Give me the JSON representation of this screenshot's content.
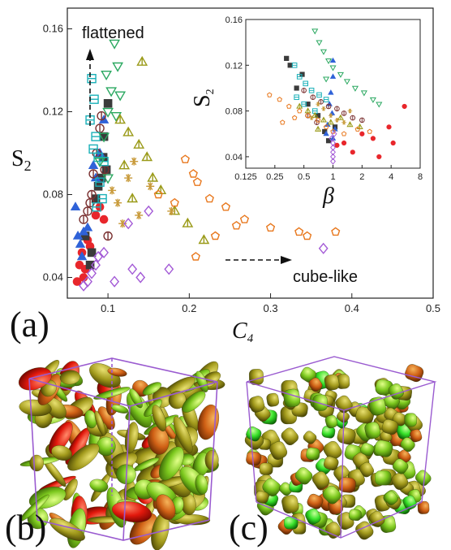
{
  "chart_data": [
    {
      "type": "scatter",
      "title": "",
      "xlabel": "C",
      "xlabel_sub": "4",
      "ylabel": "S",
      "ylabel_sub": "2",
      "xlim": [
        0.05,
        0.5
      ],
      "ylim": [
        0.03,
        0.17
      ],
      "xticks": [
        "0.1",
        "0.2",
        "0.3",
        "0.4",
        "0.5"
      ],
      "xtick_values": [
        0.1,
        0.2,
        0.3,
        0.4,
        0.5
      ],
      "yticks": [
        "0.04",
        "0.08",
        "0.12",
        "0.16"
      ],
      "ytick_values": [
        0.04,
        0.08,
        0.12,
        0.16
      ],
      "annotations": {
        "flattened": "flattened",
        "cube_like": "cube-like"
      },
      "series": [
        {
          "marker": "circle",
          "color": "#e8262b",
          "filled": true,
          "points": [
            [
              0.062,
              0.038
            ],
            [
              0.065,
              0.046
            ],
            [
              0.068,
              0.052
            ],
            [
              0.072,
              0.044
            ],
            [
              0.078,
              0.055
            ],
            [
              0.085,
              0.07
            ],
            [
              0.09,
              0.074
            ],
            [
              0.095,
              0.068
            ],
            [
              0.07,
              0.04
            ],
            [
              0.075,
              0.058
            ]
          ]
        },
        {
          "marker": "square",
          "color": "#3b3b3b",
          "filled": true,
          "points": [
            [
              0.072,
              0.06
            ],
            [
              0.078,
              0.046
            ],
            [
              0.085,
              0.078
            ],
            [
              0.092,
              0.088
            ],
            [
              0.1,
              0.124
            ],
            [
              0.095,
              0.108
            ],
            [
              0.098,
              0.092
            ],
            [
              0.088,
              0.084
            ],
            [
              0.08,
              0.052
            ],
            [
              0.094,
              0.098
            ]
          ]
        },
        {
          "marker": "triangle",
          "color": "#2f62d8",
          "filled": true,
          "points": [
            [
              0.06,
              0.074
            ],
            [
              0.063,
              0.06
            ],
            [
              0.066,
              0.056
            ],
            [
              0.07,
              0.062
            ],
            [
              0.075,
              0.064
            ],
            [
              0.082,
              0.094
            ],
            [
              0.09,
              0.1
            ],
            [
              0.095,
              0.116
            ],
            [
              0.085,
              0.088
            ],
            [
              0.068,
              0.05
            ]
          ]
        },
        {
          "marker": "circle-bar",
          "color": "#7a3030",
          "filled": false,
          "points": [
            [
              0.07,
              0.068
            ],
            [
              0.075,
              0.072
            ],
            [
              0.08,
              0.08
            ],
            [
              0.082,
              0.09
            ],
            [
              0.086,
              0.1
            ],
            [
              0.09,
              0.112
            ],
            [
              0.092,
              0.118
            ],
            [
              0.096,
              0.092
            ],
            [
              0.1,
              0.06
            ],
            [
              0.078,
              0.076
            ]
          ]
        },
        {
          "marker": "square-bar",
          "color": "#1ab0b8",
          "filled": false,
          "points": [
            [
              0.08,
              0.136
            ],
            [
              0.083,
              0.126
            ],
            [
              0.085,
              0.108
            ],
            [
              0.088,
              0.098
            ],
            [
              0.09,
              0.086
            ],
            [
              0.093,
              0.078
            ],
            [
              0.078,
              0.116
            ],
            [
              0.082,
              0.102
            ],
            [
              0.086,
              0.074
            ],
            [
              0.095,
              0.096
            ]
          ]
        },
        {
          "marker": "triangle-down",
          "color": "#2aa860",
          "filled": false,
          "points": [
            [
              0.108,
              0.153
            ],
            [
              0.112,
              0.142
            ],
            [
              0.104,
              0.13
            ],
            [
              0.1,
              0.12
            ],
            [
              0.095,
              0.108
            ],
            [
              0.09,
              0.096
            ],
            [
              0.1,
              0.088
            ],
            [
              0.11,
              0.118
            ],
            [
              0.098,
              0.138
            ],
            [
              0.115,
              0.128
            ]
          ]
        },
        {
          "marker": "triangle-bar",
          "color": "#9a9a18",
          "filled": false,
          "points": [
            [
              0.115,
              0.116
            ],
            [
              0.125,
              0.11
            ],
            [
              0.138,
              0.104
            ],
            [
              0.148,
              0.098
            ],
            [
              0.165,
              0.082
            ],
            [
              0.182,
              0.072
            ],
            [
              0.198,
              0.066
            ],
            [
              0.218,
              0.058
            ],
            [
              0.155,
              0.088
            ],
            [
              0.13,
              0.078
            ],
            [
              0.142,
              0.144
            ],
            [
              0.12,
              0.094
            ]
          ]
        },
        {
          "marker": "asterisk",
          "color": "#c89a3a",
          "filled": false,
          "points": [
            [
              0.105,
              0.082
            ],
            [
              0.112,
              0.076
            ],
            [
              0.125,
              0.088
            ],
            [
              0.138,
              0.07
            ],
            [
              0.152,
              0.084
            ],
            [
              0.178,
              0.072
            ],
            [
              0.118,
              0.066
            ],
            [
              0.132,
              0.096
            ]
          ]
        },
        {
          "marker": "pentagon",
          "color": "#e8781e",
          "filled": false,
          "points": [
            [
              0.195,
              0.097
            ],
            [
              0.205,
              0.09
            ],
            [
              0.21,
              0.086
            ],
            [
              0.225,
              0.078
            ],
            [
              0.245,
              0.074
            ],
            [
              0.268,
              0.068
            ],
            [
              0.3,
              0.064
            ],
            [
              0.335,
              0.062
            ],
            [
              0.345,
              0.06
            ],
            [
              0.38,
              0.062
            ],
            [
              0.208,
              0.05
            ],
            [
              0.162,
              0.08
            ],
            [
              0.182,
              0.076
            ],
            [
              0.232,
              0.06
            ],
            [
              0.258,
              0.065
            ]
          ]
        },
        {
          "marker": "diamond",
          "color": "#a35ad6",
          "filled": false,
          "points": [
            [
              0.07,
              0.036
            ],
            [
              0.075,
              0.038
            ],
            [
              0.08,
              0.042
            ],
            [
              0.085,
              0.046
            ],
            [
              0.088,
              0.05
            ],
            [
              0.095,
              0.052
            ],
            [
              0.108,
              0.038
            ],
            [
              0.13,
              0.044
            ],
            [
              0.14,
              0.04
            ],
            [
              0.175,
              0.044
            ],
            [
              0.365,
              0.054
            ],
            [
              0.125,
              0.066
            ],
            [
              0.15,
              0.072
            ]
          ]
        }
      ]
    },
    {
      "type": "scatter",
      "title": "",
      "xlabel": "β",
      "ylabel": "S",
      "ylabel_sub": "2",
      "x_scale": "log2",
      "xlim": [
        0.125,
        8
      ],
      "ylim": [
        0.03,
        0.16
      ],
      "xticks": [
        "0.125",
        "0.25",
        "0.5",
        "1",
        "2",
        "4",
        "8"
      ],
      "xtick_values": [
        0.125,
        0.25,
        0.5,
        1,
        2,
        4,
        8
      ],
      "yticks": [
        "0.04",
        "0.08",
        "0.12",
        "0.16"
      ],
      "ytick_values": [
        0.04,
        0.08,
        0.12,
        0.16
      ],
      "series": [
        {
          "marker": "circle",
          "color": "#e8262b",
          "filled": true,
          "points": [
            [
              5.5,
              0.084
            ],
            [
              3.8,
              0.066
            ],
            [
              3.0,
              0.04
            ],
            [
              2.6,
              0.056
            ],
            [
              2.0,
              0.06
            ],
            [
              1.6,
              0.044
            ],
            [
              1.3,
              0.052
            ],
            [
              1.1,
              0.05
            ],
            [
              4.2,
              0.052
            ]
          ]
        },
        {
          "marker": "square",
          "color": "#3b3b3b",
          "filled": true,
          "points": [
            [
              0.33,
              0.126
            ],
            [
              0.36,
              0.12
            ],
            [
              0.42,
              0.1
            ],
            [
              0.55,
              0.086
            ],
            [
              0.7,
              0.076
            ],
            [
              0.82,
              0.062
            ],
            [
              0.9,
              0.054
            ],
            [
              1.05,
              0.066
            ],
            [
              0.48,
              0.112
            ]
          ]
        },
        {
          "marker": "triangle",
          "color": "#2f62d8",
          "filled": true,
          "points": [
            [
              1.0,
              0.124
            ],
            [
              1.0,
              0.11
            ],
            [
              0.95,
              0.096
            ],
            [
              0.92,
              0.086
            ],
            [
              0.88,
              0.068
            ],
            [
              0.85,
              0.06
            ],
            [
              1.05,
              0.064
            ],
            [
              1.0,
              0.056
            ],
            [
              0.98,
              0.078
            ]
          ]
        },
        {
          "marker": "circle-bar",
          "color": "#7a3030",
          "filled": false,
          "points": [
            [
              0.5,
              0.098
            ],
            [
              0.62,
              0.092
            ],
            [
              0.75,
              0.088
            ],
            [
              0.9,
              0.084
            ],
            [
              1.1,
              0.082
            ],
            [
              1.3,
              0.078
            ],
            [
              1.6,
              0.074
            ],
            [
              2.0,
              0.072
            ],
            [
              0.55,
              0.076
            ],
            [
              0.68,
              0.07
            ]
          ]
        },
        {
          "marker": "square-bar",
          "color": "#1ab0b8",
          "filled": false,
          "points": [
            [
              0.4,
              0.12
            ],
            [
              0.45,
              0.11
            ],
            [
              0.52,
              0.104
            ],
            [
              0.6,
              0.098
            ],
            [
              0.72,
              0.094
            ],
            [
              0.85,
              0.09
            ],
            [
              0.42,
              0.092
            ],
            [
              0.5,
              0.086
            ],
            [
              0.65,
              0.08
            ]
          ]
        },
        {
          "marker": "triangle-down",
          "color": "#2aa860",
          "filled": false,
          "points": [
            [
              0.65,
              0.15
            ],
            [
              0.72,
              0.14
            ],
            [
              0.8,
              0.132
            ],
            [
              0.9,
              0.124
            ],
            [
              1.0,
              0.118
            ],
            [
              1.2,
              0.112
            ],
            [
              1.4,
              0.106
            ],
            [
              1.7,
              0.1
            ],
            [
              2.1,
              0.096
            ],
            [
              2.6,
              0.09
            ],
            [
              3.0,
              0.086
            ],
            [
              0.85,
              0.108
            ]
          ]
        },
        {
          "marker": "triangle-bar",
          "color": "#9a9a18",
          "filled": false,
          "points": [
            [
              0.45,
              0.084
            ],
            [
              0.55,
              0.08
            ],
            [
              0.65,
              0.076
            ],
            [
              0.8,
              0.072
            ],
            [
              0.95,
              0.07
            ],
            [
              1.2,
              0.074
            ],
            [
              1.5,
              0.068
            ],
            [
              1.9,
              0.066
            ],
            [
              0.7,
              0.064
            ]
          ]
        },
        {
          "marker": "asterisk",
          "color": "#c89a3a",
          "filled": false,
          "points": [
            [
              0.7,
              0.086
            ],
            [
              0.8,
              0.082
            ],
            [
              0.95,
              0.076
            ],
            [
              1.1,
              0.072
            ],
            [
              1.3,
              0.07
            ],
            [
              0.6,
              0.074
            ],
            [
              1.5,
              0.08
            ]
          ]
        },
        {
          "marker": "pentagon",
          "color": "#e8781e",
          "filled": false,
          "points": [
            [
              0.22,
              0.094
            ],
            [
              0.28,
              0.09
            ],
            [
              0.35,
              0.084
            ],
            [
              0.45,
              0.08
            ],
            [
              0.55,
              0.076
            ],
            [
              0.7,
              0.072
            ],
            [
              0.85,
              0.066
            ],
            [
              1.0,
              0.062
            ],
            [
              1.3,
              0.06
            ],
            [
              1.8,
              0.064
            ],
            [
              2.4,
              0.062
            ],
            [
              0.3,
              0.07
            ],
            [
              0.4,
              0.074
            ]
          ]
        },
        {
          "marker": "diamond",
          "color": "#a35ad6",
          "filled": false,
          "points": [
            [
              1.0,
              0.04
            ],
            [
              1.0,
              0.044
            ],
            [
              1.0,
              0.048
            ],
            [
              1.0,
              0.052
            ],
            [
              0.97,
              0.056
            ],
            [
              1.03,
              0.06
            ],
            [
              1.0,
              0.036
            ]
          ]
        }
      ]
    }
  ],
  "panels": {
    "a": "(a)",
    "b": "(b)",
    "c": "(c)"
  },
  "colors": {
    "box_edge": "#9a5bd0",
    "particle_dark": "#6d6d10",
    "particle_mid": "#a8a820",
    "particle_light": "#8fdc2a",
    "particle_red": "#e01a10",
    "particle_orange": "#d2661a"
  }
}
